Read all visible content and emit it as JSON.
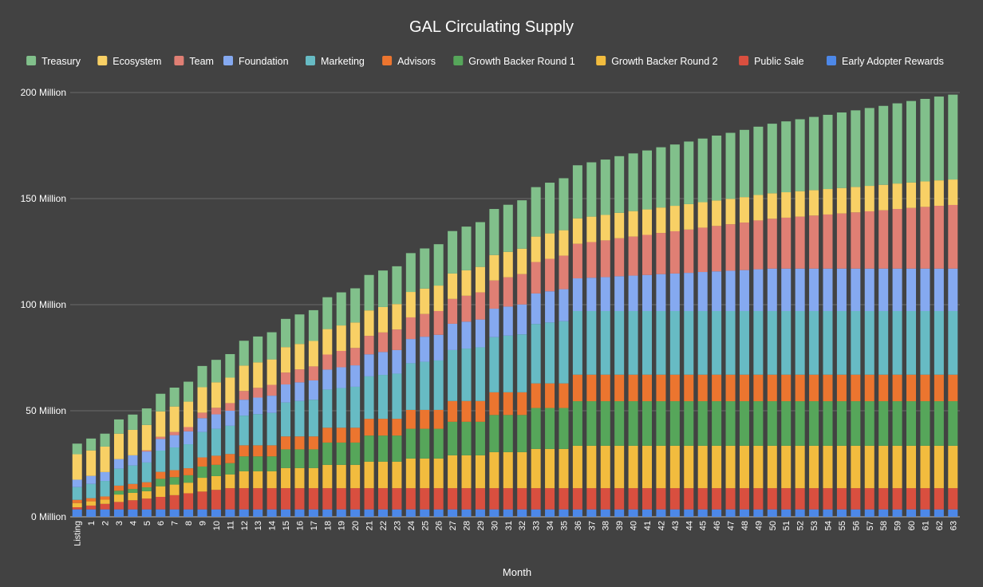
{
  "chart_data": {
    "type": "bar",
    "stacked": true,
    "title": "GAL Circulating Supply",
    "xlabel": "Month",
    "ylabel": "",
    "ylim": [
      0,
      200
    ],
    "yticks": [
      0,
      50,
      100,
      150,
      200
    ],
    "ytick_labels": [
      "0 Million",
      "50 Million",
      "100 Million",
      "150 Million",
      "200 Million"
    ],
    "grid": true,
    "legend_position": "top",
    "background": "#424242",
    "categories": [
      "Listing",
      "1",
      "2",
      "3",
      "4",
      "5",
      "6",
      "7",
      "8",
      "9",
      "10",
      "11",
      "12",
      "13",
      "14",
      "15",
      "16",
      "17",
      "18",
      "19",
      "20",
      "21",
      "22",
      "23",
      "24",
      "25",
      "26",
      "27",
      "28",
      "29",
      "30",
      "31",
      "32",
      "33",
      "34",
      "35",
      "36",
      "37",
      "38",
      "39",
      "40",
      "41",
      "42",
      "43",
      "44",
      "45",
      "46",
      "47",
      "48",
      "49",
      "50",
      "51",
      "52",
      "53",
      "54",
      "55",
      "56",
      "57",
      "58",
      "59",
      "60",
      "61",
      "62",
      "63"
    ],
    "legend_order": [
      "Treasury",
      "Ecosystem",
      "Team",
      "Foundation",
      "Marketing",
      "Advisors",
      "Growth Backer Round 1",
      "Growth Backer Round 2",
      "Public Sale",
      "Early Adopter Rewards"
    ],
    "series": [
      {
        "name": "Early Adopter Rewards",
        "color": "#4d88e8",
        "values": [
          3.5,
          3.5,
          3.5,
          3.5,
          3.5,
          3.5,
          3.5,
          3.5,
          3.5,
          3.5,
          3.5,
          3.5,
          3.5,
          3.5,
          3.5,
          3.5,
          3.5,
          3.5,
          3.5,
          3.5,
          3.5,
          3.5,
          3.5,
          3.5,
          3.5,
          3.5,
          3.5,
          3.5,
          3.5,
          3.5,
          3.5,
          3.5,
          3.5,
          3.5,
          3.5,
          3.5,
          3.5,
          3.5,
          3.5,
          3.5,
          3.5,
          3.5,
          3.5,
          3.5,
          3.5,
          3.5,
          3.5,
          3.5,
          3.5,
          3.5,
          3.5,
          3.5,
          3.5,
          3.5,
          3.5,
          3.5,
          3.5,
          3.5,
          3.5,
          3.5,
          3.5,
          3.5,
          3.5,
          3.5
        ]
      },
      {
        "name": "Public Sale",
        "color": "#d94f3f",
        "values": [
          1,
          1.8,
          2.6,
          3.5,
          4.3,
          5.1,
          5.9,
          6.7,
          7.6,
          8.4,
          9.2,
          10,
          10,
          10,
          10,
          10,
          10,
          10,
          10,
          10,
          10,
          10,
          10,
          10,
          10,
          10,
          10,
          10,
          10,
          10,
          10,
          10,
          10,
          10,
          10,
          10,
          10,
          10,
          10,
          10,
          10,
          10,
          10,
          10,
          10,
          10,
          10,
          10,
          10,
          10,
          10,
          10,
          10,
          10,
          10,
          10,
          10,
          10,
          10,
          10,
          10,
          10,
          10,
          10
        ]
      },
      {
        "name": "Growth Backer Round 2",
        "color": "#f2bc3e",
        "values": [
          2,
          2,
          2,
          3.5,
          3.5,
          3.5,
          5,
          5,
          5,
          6.5,
          6.5,
          6.5,
          8,
          8,
          8,
          9.5,
          9.5,
          9.5,
          11,
          11,
          11,
          12.5,
          12.5,
          12.5,
          14,
          14,
          14,
          15.5,
          15.5,
          15.5,
          17,
          17,
          17,
          18.5,
          18.5,
          18.5,
          20,
          20,
          20,
          20,
          20,
          20,
          20,
          20,
          20,
          20,
          20,
          20,
          20,
          20,
          20,
          20,
          20,
          20,
          20,
          20,
          20,
          20,
          20,
          20,
          20,
          20,
          20,
          20
        ]
      },
      {
        "name": "Growth Backer Round 1",
        "color": "#56a65a",
        "values": [
          0,
          0,
          0,
          1.8,
          1.8,
          1.8,
          3.5,
          3.5,
          3.5,
          5.3,
          5.3,
          5.3,
          7,
          7,
          7,
          8.8,
          8.8,
          8.8,
          10.5,
          10.5,
          10.5,
          12.3,
          12.3,
          12.3,
          14,
          14,
          14,
          15.8,
          15.8,
          15.8,
          17.5,
          17.5,
          17.5,
          19.3,
          19.3,
          19.3,
          21,
          21,
          21,
          21,
          21,
          21,
          21,
          21,
          21,
          21,
          21,
          21,
          21,
          21,
          21,
          21,
          21,
          21,
          21,
          21,
          21,
          21,
          21,
          21,
          21,
          21,
          21,
          21
        ]
      },
      {
        "name": "Advisors",
        "color": "#ec752f",
        "values": [
          1.5,
          1.5,
          1.5,
          2.4,
          2.4,
          2.4,
          3.3,
          3.3,
          3.3,
          4.3,
          4.3,
          4.3,
          5.2,
          5.2,
          5.2,
          6.1,
          6.1,
          6.1,
          7,
          7,
          7,
          7.9,
          7.9,
          7.9,
          8.9,
          8.9,
          8.9,
          9.8,
          9.8,
          9.8,
          10.7,
          10.7,
          10.7,
          11.6,
          11.6,
          11.6,
          12.5,
          12.5,
          12.5,
          12.5,
          12.5,
          12.5,
          12.5,
          12.5,
          12.5,
          12.5,
          12.5,
          12.5,
          12.5,
          12.5,
          12.5,
          12.5,
          12.5,
          12.5,
          12.5,
          12.5,
          12.5,
          12.5,
          12.5,
          12.5,
          12.5,
          12.5,
          12.5,
          12.5
        ]
      },
      {
        "name": "Marketing",
        "color": "#67bbc4",
        "values": [
          6,
          6.7,
          7.3,
          8,
          8.7,
          9.3,
          10,
          10.7,
          11.3,
          12,
          12.7,
          13.3,
          14,
          14.7,
          15.3,
          16,
          16.7,
          17.3,
          18,
          18.7,
          19.3,
          20,
          20.7,
          21.3,
          22,
          22.7,
          23.3,
          24,
          24.7,
          25.3,
          26,
          26.7,
          27.3,
          28,
          28.7,
          29.3,
          30,
          30,
          30,
          30,
          30,
          30,
          30,
          30,
          30,
          30,
          30,
          30,
          30,
          30,
          30,
          30,
          30,
          30,
          30,
          30,
          30,
          30,
          30,
          30,
          30,
          30,
          30,
          30
        ]
      },
      {
        "name": "Foundation",
        "color": "#85a9f0",
        "values": [
          3.5,
          3.8,
          4.2,
          4.5,
          4.8,
          5.2,
          5.5,
          5.8,
          6.1,
          6.5,
          6.8,
          7.1,
          7.5,
          7.8,
          8.1,
          8.5,
          8.8,
          9.1,
          9.4,
          9.8,
          10.1,
          10.4,
          10.8,
          11.1,
          11.4,
          11.8,
          12.1,
          12.4,
          12.7,
          13.1,
          13.4,
          13.7,
          14.1,
          14.4,
          14.7,
          15.1,
          15.4,
          15.7,
          16,
          16.4,
          16.7,
          17,
          17.4,
          17.7,
          18,
          18.4,
          18.7,
          19,
          19.3,
          19.7,
          20,
          20,
          20,
          20,
          20,
          20,
          20,
          20,
          20,
          20,
          20,
          20,
          20,
          20
        ]
      },
      {
        "name": "Team",
        "color": "#e07f74",
        "values": [
          0,
          0,
          0,
          0,
          0,
          0.5,
          1,
          1.5,
          2,
          2.6,
          3.1,
          3.6,
          4.1,
          4.6,
          5.1,
          5.6,
          6.1,
          6.6,
          7.1,
          7.7,
          8.2,
          8.7,
          9.2,
          9.7,
          10.2,
          10.7,
          11.2,
          11.7,
          12.2,
          12.8,
          13.3,
          13.8,
          14.3,
          14.8,
          15.3,
          15.8,
          16.3,
          16.8,
          17.3,
          17.9,
          18.4,
          18.9,
          19.4,
          19.9,
          20.4,
          20.9,
          21.4,
          21.9,
          22.4,
          23,
          23.5,
          24,
          24.5,
          25,
          25.5,
          26,
          26.5,
          27,
          27.5,
          28.1,
          28.6,
          29.1,
          29.6,
          30
        ]
      },
      {
        "name": "Ecosystem",
        "color": "#f8d065",
        "values": [
          12,
          12,
          12,
          12,
          12,
          12,
          12,
          12,
          12,
          12,
          12,
          12,
          12,
          12,
          12,
          12,
          12,
          12,
          12,
          12,
          12,
          12,
          12,
          12,
          12,
          12,
          12,
          12,
          12,
          12,
          12,
          12,
          12,
          12,
          12,
          12,
          12,
          12,
          12,
          12,
          12,
          12,
          12,
          12,
          12,
          12,
          12,
          12,
          12,
          12,
          12,
          12,
          12,
          12,
          12,
          12,
          12,
          12,
          12,
          12,
          12,
          12,
          12,
          12
        ]
      },
      {
        "name": "Treasury",
        "color": "#81c08b",
        "values": [
          5,
          5.6,
          6.1,
          6.7,
          7.2,
          7.8,
          8.3,
          8.9,
          9.4,
          10,
          10.6,
          11.1,
          11.7,
          12.2,
          12.8,
          13.3,
          13.9,
          14.5,
          15,
          15.6,
          16.1,
          16.7,
          17.2,
          17.8,
          18.3,
          18.9,
          19.5,
          20,
          20.6,
          21.1,
          21.7,
          22.2,
          22.8,
          23.3,
          23.9,
          24.5,
          25,
          25.6,
          26.1,
          26.7,
          27.2,
          27.8,
          28.4,
          28.9,
          29.5,
          30,
          30.6,
          31.1,
          31.7,
          32.2,
          32.8,
          33.4,
          33.9,
          34.5,
          35,
          35.6,
          36.1,
          36.7,
          37.2,
          37.8,
          38.4,
          38.9,
          39.5,
          40
        ]
      }
    ]
  }
}
